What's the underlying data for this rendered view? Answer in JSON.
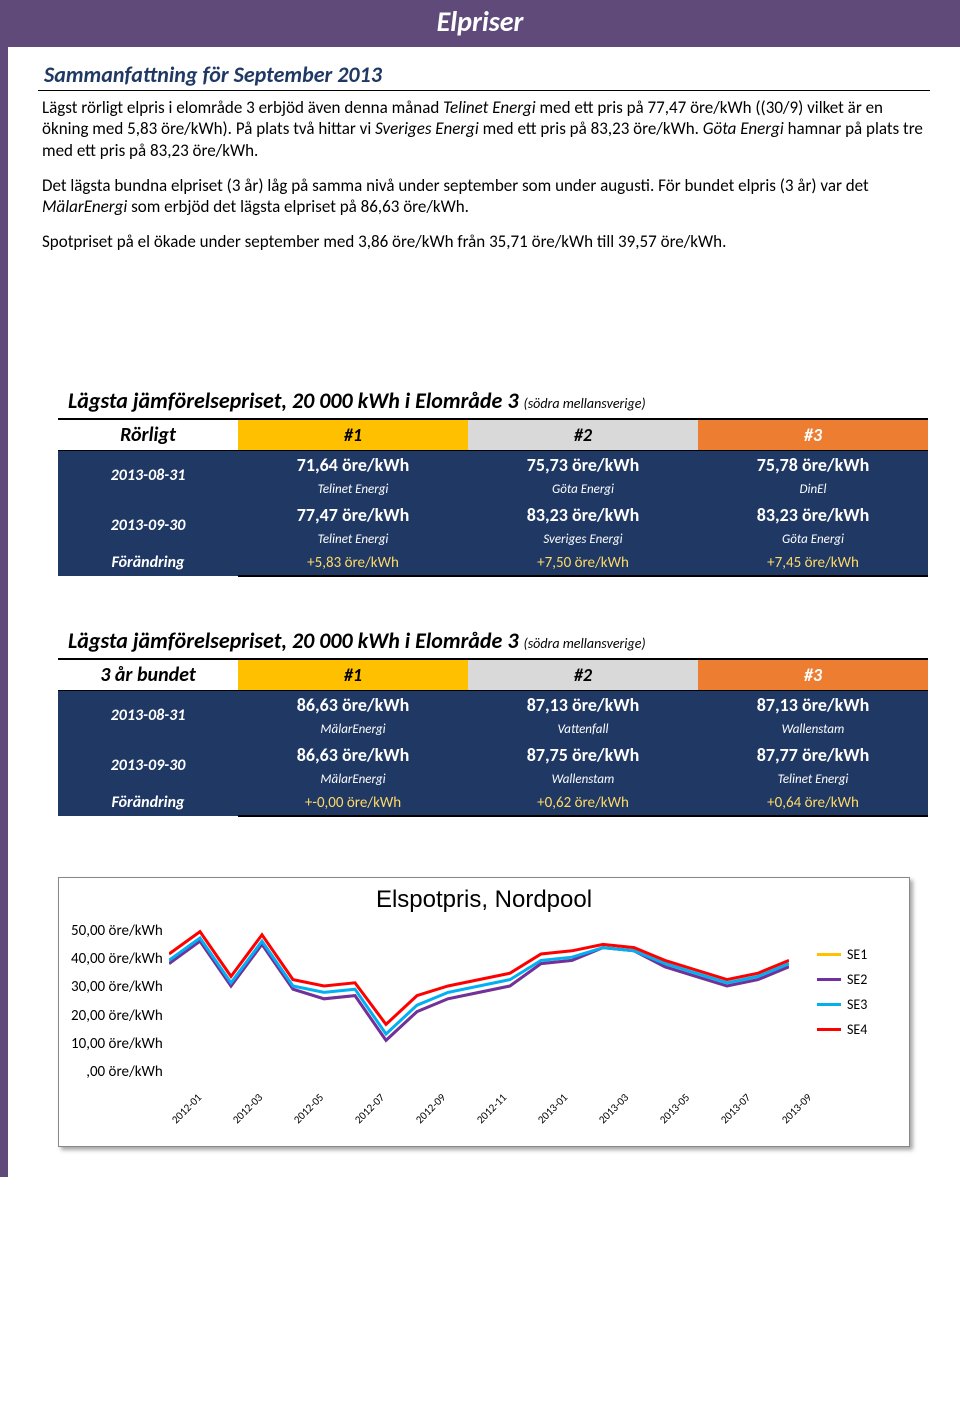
{
  "page_title": "Elpriser",
  "summary": {
    "heading": "Sammanfattning för September 2013",
    "paragraphs": [
      "Lägst rörligt elpris i elområde 3 erbjöd även denna månad <em>Telinet Energi</em> med ett pris på 77,47 öre/kWh ((30/9) vilket är en ökning med 5,83 öre/kWh). På plats två hittar vi <em>Sveriges Energi</em> med ett pris på 83,23 öre/kWh. <em>Göta Energi</em> hamnar på plats tre med ett pris på 83,23 öre/kWh.",
      "Det lägsta bundna elpriset (3 år) låg på samma nivå under september som under augusti. För bundet elpris (3 år) var det <em>MälarEnergi</em> som erbjöd det lägsta elpriset på 86,63 öre/kWh.",
      "Spotpriset på el ökade under september med 3,86 öre/kWh från 35,71 öre/kWh till 39,57 öre/kWh."
    ]
  },
  "comparison_title": "Lägsta jämförelsepriset, 20 000 kWh i Elområde 3",
  "comparison_sub": "(södra mellansverige)",
  "rank_headers": [
    "#1",
    "#2",
    "#3"
  ],
  "rorligt": {
    "label": "Rörligt",
    "rows": [
      {
        "date": "2013-08-31",
        "cells": [
          {
            "price": "71,64 öre/kWh",
            "provider": "Telinet Energi"
          },
          {
            "price": "75,73 öre/kWh",
            "provider": "Göta Energi"
          },
          {
            "price": "75,78 öre/kWh",
            "provider": "DinEl"
          }
        ]
      },
      {
        "date": "2013-09-30",
        "cells": [
          {
            "price": "77,47 öre/kWh",
            "provider": "Telinet Energi"
          },
          {
            "price": "83,23 öre/kWh",
            "provider": "Sveriges Energi"
          },
          {
            "price": "83,23 öre/kWh",
            "provider": "Göta Energi"
          }
        ]
      }
    ],
    "change_label": "Förändring",
    "changes": [
      "+5,83 öre/kWh",
      "+7,50 öre/kWh",
      "+7,45 öre/kWh"
    ]
  },
  "bundet": {
    "label": "3 år bundet",
    "rows": [
      {
        "date": "2013-08-31",
        "cells": [
          {
            "price": "86,63 öre/kWh",
            "provider": "MälarEnergi"
          },
          {
            "price": "87,13 öre/kWh",
            "provider": "Vattenfall"
          },
          {
            "price": "87,13 öre/kWh",
            "provider": "Wallenstam"
          }
        ]
      },
      {
        "date": "2013-09-30",
        "cells": [
          {
            "price": "86,63 öre/kWh",
            "provider": "MälarEnergi"
          },
          {
            "price": "87,75 öre/kWh",
            "provider": "Wallenstam"
          },
          {
            "price": "87,77 öre/kWh",
            "provider": "Telinet Energi"
          }
        ]
      }
    ],
    "change_label": "Förändring",
    "changes": [
      "+-0,00 öre/kWh",
      "+0,62 öre/kWh",
      "+0,64 öre/kWh"
    ]
  },
  "chart": {
    "title": "Elspotpris, Nordpool",
    "y_ticks": [
      "50,00 öre/kWh",
      "40,00 öre/kWh",
      "30,00 öre/kWh",
      "20,00 öre/kWh",
      "10,00 öre/kWh",
      ",00 öre/kWh"
    ],
    "x_ticks": [
      "2012-01",
      "2012-03",
      "2012-05",
      "2012-07",
      "2012-09",
      "2012-11",
      "2013-01",
      "2013-03",
      "2013-05",
      "2013-07",
      "2013-09"
    ],
    "ylim": [
      0,
      50
    ],
    "series": [
      {
        "name": "SE1",
        "color": "#ffc000",
        "values": [
          37,
          44,
          30,
          43,
          29,
          26,
          27,
          13,
          22,
          26,
          28,
          30,
          37,
          38,
          42,
          41,
          36,
          33,
          30,
          32,
          36
        ]
      },
      {
        "name": "SE2",
        "color": "#7030a0",
        "values": [
          37,
          44,
          30,
          43,
          29,
          26,
          27,
          13,
          22,
          26,
          28,
          30,
          37,
          38,
          42,
          41,
          36,
          33,
          30,
          32,
          36
        ]
      },
      {
        "name": "SE3",
        "color": "#00b0f0",
        "values": [
          38,
          45,
          31,
          44,
          30,
          28,
          29,
          15,
          24,
          28,
          30,
          32,
          38,
          39,
          42,
          41,
          37,
          34,
          31,
          33,
          37
        ]
      },
      {
        "name": "SE4",
        "color": "#ff0000",
        "values": [
          40,
          47,
          33,
          46,
          32,
          30,
          31,
          18,
          27,
          30,
          32,
          34,
          40,
          41,
          43,
          42,
          38,
          35,
          32,
          34,
          38
        ]
      }
    ]
  }
}
